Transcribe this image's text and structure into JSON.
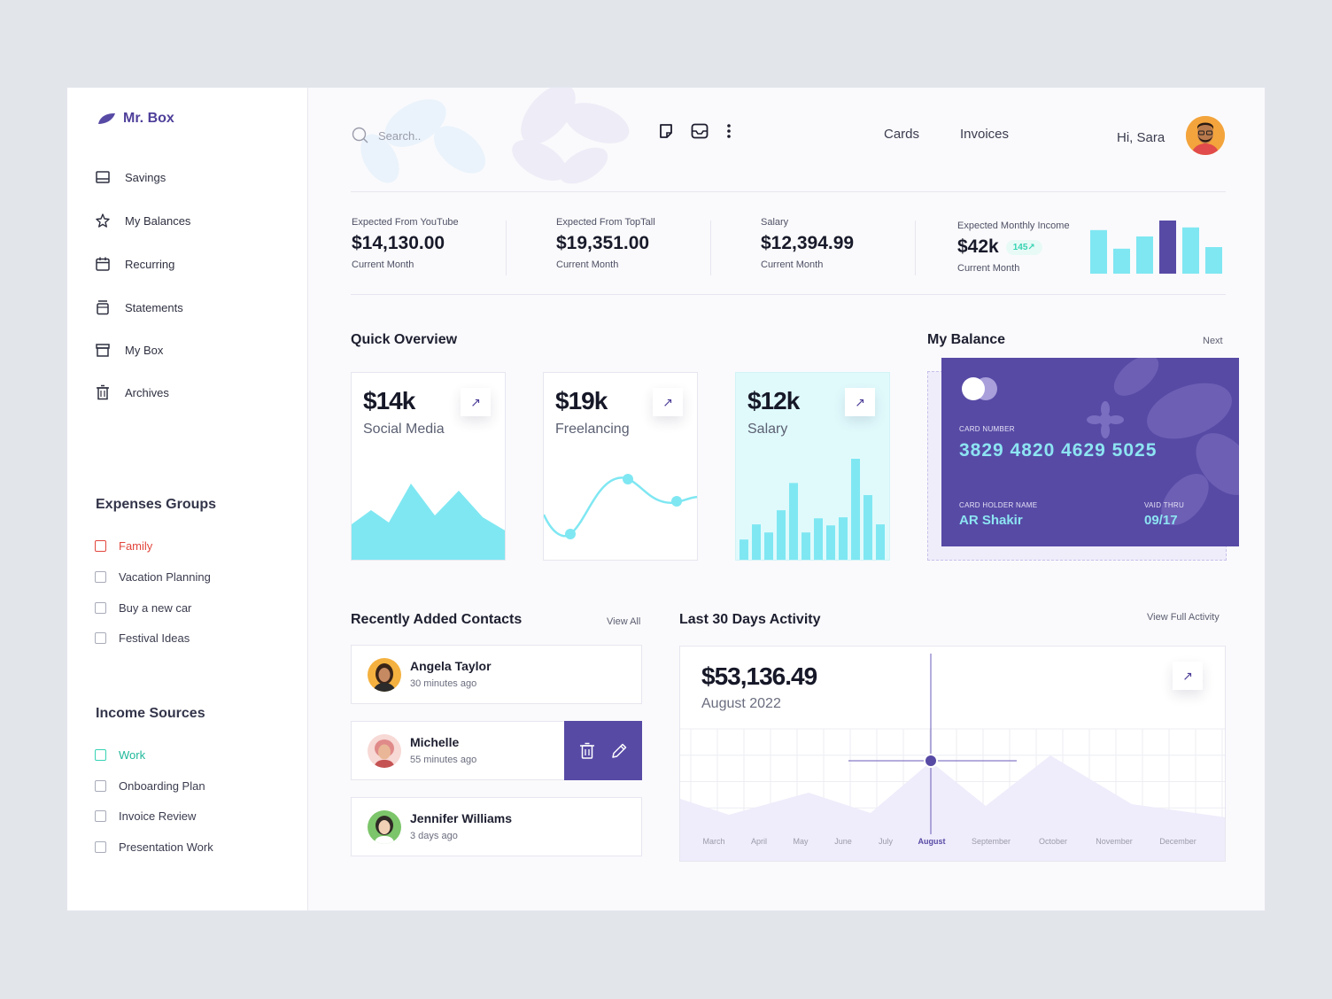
{
  "app": {
    "brand": "Mr. Box"
  },
  "sidebar": {
    "nav": [
      {
        "label": "Savings",
        "icon": "savings-icon"
      },
      {
        "label": "My Balances",
        "icon": "star-icon"
      },
      {
        "label": "Recurring",
        "icon": "calendar-icon"
      },
      {
        "label": "Statements",
        "icon": "jar-icon"
      },
      {
        "label": "My Box",
        "icon": "box-icon"
      },
      {
        "label": "Archives",
        "icon": "trash-icon"
      }
    ],
    "expenses_title": "Expenses  Groups",
    "expenses": [
      "Family",
      "Vacation Planning",
      "Buy a new car",
      "Festival Ideas"
    ],
    "income_title": "Income Sources",
    "income": [
      "Work",
      "Onboarding Plan",
      "Invoice Review",
      "Presentation Work"
    ]
  },
  "header": {
    "search_placeholder": "Search..",
    "links": [
      "Cards",
      "Invoices"
    ],
    "greeting": "Hi, Sara"
  },
  "stats": [
    {
      "label": "Expected From YouTube",
      "value": "$14,130.00",
      "sub": "Current Month"
    },
    {
      "label": "Expected From TopTall",
      "value": "$19,351.00",
      "sub": "Current Month"
    },
    {
      "label": "Salary",
      "value": "$12,394.99",
      "sub": "Current Month"
    },
    {
      "label": "Expected Monthly Income",
      "value": "$42k",
      "badge": "145↗",
      "sub": "Current Month"
    }
  ],
  "mini_bars": [
    0.82,
    0.47,
    0.7,
    1.0,
    0.87,
    0.5
  ],
  "quick": {
    "title": "Quick Overview",
    "cards": [
      {
        "value": "$14k",
        "name": "Social Media"
      },
      {
        "value": "$19k",
        "name": "Freelancing"
      },
      {
        "value": "$12k",
        "name": "Salary"
      }
    ],
    "salary_bars": [
      0.2,
      0.35,
      0.27,
      0.49,
      0.76,
      0.27,
      0.41,
      0.34,
      0.42,
      1.0,
      0.64,
      0.35
    ]
  },
  "balance": {
    "title": "My Balance",
    "next": "Next",
    "card_number_label": "CARD NUMBER",
    "card_number": "3829 4820 4629 5025",
    "holder_label": "CARD HOLDER NAME",
    "holder": "AR Shakir",
    "thru_label": "VAID THRU",
    "thru": "09/17"
  },
  "contacts": {
    "title": "Recently Added Contacts",
    "view_all": "View All",
    "items": [
      {
        "name": "Angela Taylor",
        "time": "30 minutes ago"
      },
      {
        "name": "Michelle",
        "time": "55 minutes ago"
      },
      {
        "name": "Jennifer Williams",
        "time": "3 days ago"
      }
    ]
  },
  "activity": {
    "title": "Last 30 Days Activity",
    "view_full": "View Full Activity",
    "amount": "$53,136.49",
    "period": "August 2022",
    "months": [
      "March",
      "April",
      "May",
      "June",
      "July",
      "August",
      "September",
      "October",
      "November",
      "December"
    ],
    "selected_month": "August"
  },
  "colors": {
    "accent": "#574aa5",
    "cyan": "#7fe7f2",
    "mint": "#36d3b3",
    "red": "#e2463d"
  }
}
